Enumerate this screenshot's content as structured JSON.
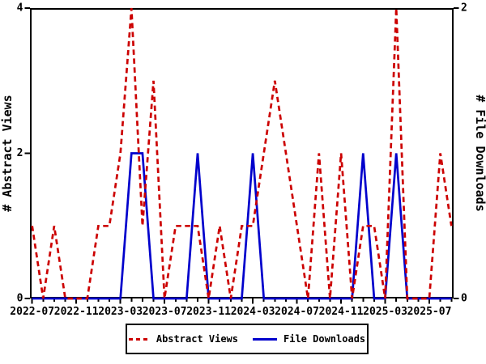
{
  "page": {
    "background": "#ffffff"
  },
  "chart": {
    "left_axis_title": "# Abstract Views",
    "right_axis_title": "# File Downloads",
    "legend": {
      "items": [
        {
          "label": "Abstract Views",
          "color": "#cc0000",
          "style": "dashed"
        },
        {
          "label": "File Downloads",
          "color": "#0000cc",
          "style": "solid"
        }
      ]
    }
  },
  "chart_data": {
    "type": "line",
    "title": "",
    "x": [
      "2022-07",
      "2022-08",
      "2022-09",
      "2022-10",
      "2022-11",
      "2022-12",
      "2023-01",
      "2023-02",
      "2023-03",
      "2023-04",
      "2023-05",
      "2023-06",
      "2023-07",
      "2023-08",
      "2023-09",
      "2023-10",
      "2023-11",
      "2023-12",
      "2024-01",
      "2024-02",
      "2024-03",
      "2024-04",
      "2024-05",
      "2024-06",
      "2024-07",
      "2024-08",
      "2024-09",
      "2024-10",
      "2024-11",
      "2024-12",
      "2025-01",
      "2025-02",
      "2025-03",
      "2025-04",
      "2025-05",
      "2025-06",
      "2025-07",
      "2025-08",
      "2025-09"
    ],
    "x_tick_label_every_n_months": 4,
    "series": [
      {
        "name": "Abstract Views",
        "axis": "left",
        "color": "#cc0000",
        "line_style": "dashed",
        "values": [
          1,
          0,
          1,
          0,
          0,
          0,
          1,
          1,
          2,
          4,
          1,
          3,
          0,
          1,
          1,
          1,
          0,
          1,
          0,
          1,
          1,
          2,
          3,
          2,
          1,
          0,
          2,
          0,
          2,
          0,
          1,
          1,
          0,
          4,
          0,
          0,
          0,
          2,
          1
        ]
      },
      {
        "name": "File Downloads",
        "axis": "right",
        "color": "#0000cc",
        "line_style": "solid",
        "values": [
          0,
          0,
          0,
          0,
          0,
          0,
          0,
          0,
          0,
          1,
          1,
          0,
          0,
          0,
          0,
          1,
          0,
          0,
          0,
          0,
          1,
          0,
          0,
          0,
          0,
          0,
          0,
          0,
          0,
          0,
          1,
          0,
          0,
          1,
          0,
          0,
          0,
          0,
          0
        ]
      }
    ],
    "left_axis": {
      "label": "# Abstract Views",
      "range": [
        0,
        4
      ],
      "ticks": [
        0,
        2,
        4
      ]
    },
    "right_axis": {
      "label": "# File Downloads",
      "range": [
        0,
        2
      ],
      "ticks": [
        0,
        2
      ]
    },
    "grid": false,
    "legend_position": "bottom-center"
  }
}
